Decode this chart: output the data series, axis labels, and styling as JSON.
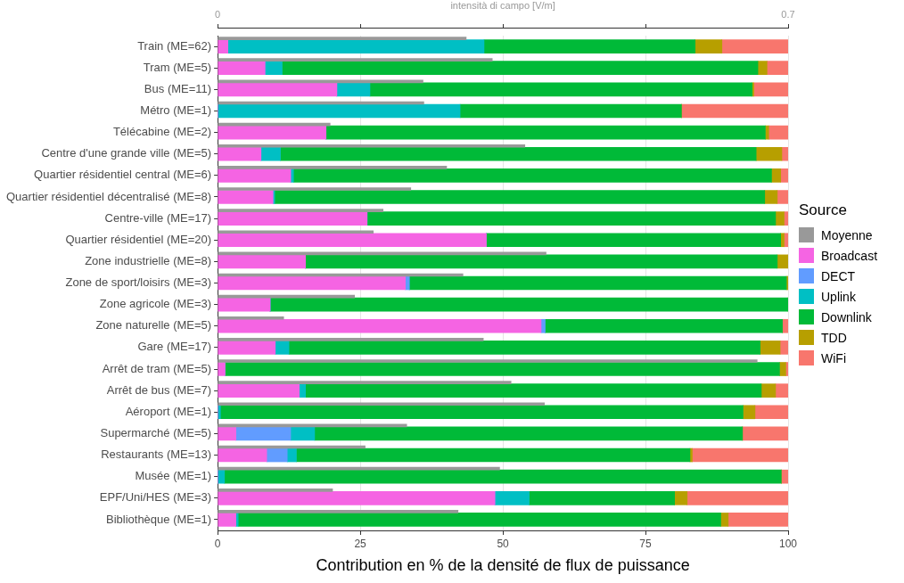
{
  "chart_data": [
    {
      "type": "bar",
      "orientation": "horizontal",
      "stacked": true,
      "categories": [
        "Train (ME=62)",
        "Tram (ME=5)",
        "Bus (ME=11)",
        "Métro (ME=1)",
        "Télécabine (ME=2)",
        "Centre d'une grande ville (ME=5)",
        "Quartier résidentiel central (ME=6)",
        "Quartier résidentiel décentralisé (ME=8)",
        "Centre-ville (ME=17)",
        "Quartier résidentiel (ME=20)",
        "Zone industrielle (ME=8)",
        "Zone de sport/loisirs (ME=3)",
        "Zone agricole (ME=3)",
        "Zone naturelle (ME=5)",
        "Gare (ME=17)",
        "Arrêt de tram (ME=5)",
        "Arrêt de bus (ME=7)",
        "Aéroport (ME=1)",
        "Supermarché (ME=5)",
        "Restaurants (ME=13)",
        "Musée (ME=1)",
        "EPF/Uni/HES (ME=3)",
        "Bibliothèque (ME=1)"
      ],
      "series": [
        {
          "name": "Broadcast",
          "color": "#f564e3",
          "values": [
            1.8,
            8.3,
            20.9,
            0,
            19.0,
            7.6,
            12.8,
            9.7,
            26.2,
            47.1,
            15.4,
            32.9,
            9.2,
            56.7,
            10.1,
            1.3,
            14.3,
            0,
            3.2,
            8.6,
            0,
            48.6,
            3.2
          ]
        },
        {
          "name": "DECT",
          "color": "#619cff",
          "values": [
            0,
            0,
            0,
            0,
            0,
            0,
            0,
            0,
            0,
            0,
            0,
            0.7,
            0,
            0.7,
            0,
            0,
            0,
            0,
            9.6,
            3.6,
            0,
            0,
            0
          ]
        },
        {
          "name": "Uplink",
          "color": "#00bfc4",
          "values": [
            44.9,
            3.0,
            5.8,
            42.5,
            0,
            3.4,
            0.5,
            0.3,
            0,
            0,
            0,
            0,
            0,
            0,
            2.4,
            0,
            1.1,
            0.5,
            4.2,
            1.6,
            1.2,
            6.0,
            0.4
          ]
        },
        {
          "name": "Downlink",
          "color": "#00ba38",
          "values": [
            37.0,
            83.4,
            67.0,
            38.8,
            77.0,
            83.4,
            83.8,
            85.9,
            71.6,
            51.6,
            82.7,
            66.1,
            90.8,
            41.6,
            82.6,
            97.2,
            79.9,
            91.6,
            75.0,
            69.0,
            97.6,
            25.5,
            84.6
          ]
        },
        {
          "name": "TDD",
          "color": "#b79f00",
          "values": [
            4.7,
            1.6,
            0.3,
            0,
            0.6,
            4.5,
            1.6,
            2.2,
            1.5,
            0.6,
            1.9,
            0.3,
            0,
            0,
            3.5,
            1.1,
            2.5,
            2.1,
            0,
            0.4,
            0,
            2.2,
            1.3
          ]
        },
        {
          "name": "WiFi",
          "color": "#f8766d",
          "values": [
            11.6,
            3.7,
            6.0,
            18.7,
            3.4,
            1.1,
            1.3,
            1.9,
            0.7,
            0.7,
            0,
            0,
            0,
            1.0,
            1.4,
            0.4,
            2.2,
            5.8,
            8.0,
            16.8,
            1.2,
            17.7,
            10.5
          ]
        }
      ],
      "xlim": [
        0,
        100
      ],
      "xticks": [
        0,
        25,
        50,
        75,
        100
      ],
      "xlabel": "Contribution en % de la densité de flux de puissance",
      "legend": "right",
      "legend_title": "Source",
      "grid": true
    },
    {
      "type": "bar",
      "orientation": "horizontal",
      "categories": [
        null,
        null,
        null,
        null,
        null,
        null,
        null,
        null,
        null,
        null,
        null,
        null,
        null,
        null,
        null,
        null,
        null,
        null,
        null,
        null,
        null,
        null,
        null
      ],
      "series": [
        {
          "name": "Moyenne",
          "color": "#999999",
          "values": [
            0.305,
            0.337,
            0.252,
            0.253,
            0.138,
            0.377,
            0.281,
            0.237,
            0.203,
            0.191,
            0.403,
            0.301,
            0.168,
            0.081,
            0.326,
            0.662,
            0.36,
            0.401,
            0.232,
            0.181,
            0.346,
            0.141,
            0.295
          ]
        }
      ],
      "xlim": [
        0,
        0.7
      ],
      "xticks": [
        0,
        {
          "value": 0.175,
          "label": null
        },
        {
          "value": 0.35,
          "label": null
        },
        {
          "value": 0.525,
          "label": null
        },
        0.7
      ],
      "xlabel": "intensità di campo [V/m]",
      "tick_labels": "x",
      "legend": "right"
    }
  ]
}
